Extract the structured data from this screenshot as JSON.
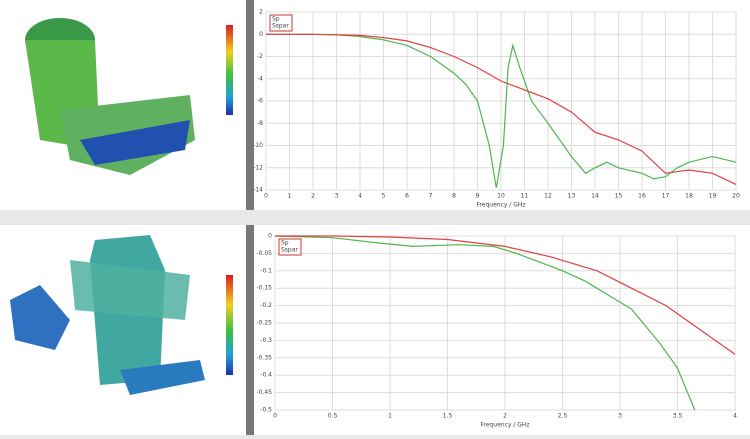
{
  "chart_data": [
    {
      "type": "line",
      "xlabel": "Frequency / GHz",
      "xlim": [
        0,
        20
      ],
      "xticks": [
        0,
        1,
        2,
        3,
        4,
        5,
        6,
        7,
        8,
        9,
        10,
        11,
        12,
        13,
        14,
        15,
        16,
        17,
        18,
        19,
        20
      ],
      "ylim": [
        -14,
        2
      ],
      "yticks": [
        2,
        0,
        -2,
        -4,
        -6,
        -8,
        -10,
        -12,
        -14
      ],
      "grid": true,
      "series": [
        {
          "name": "Sp",
          "color": "#4cb84c",
          "x": [
            0,
            2,
            3,
            4,
            5,
            6,
            7,
            8,
            8.5,
            9,
            9.5,
            9.8,
            10.1,
            10.3,
            10.5,
            10.8,
            11.3,
            12,
            13,
            13.6,
            14,
            14.5,
            15,
            16,
            16.5,
            17,
            17.5,
            18,
            19,
            20
          ],
          "values": [
            0,
            0,
            -0.05,
            -0.2,
            -0.5,
            -1,
            -2,
            -3.5,
            -4.5,
            -6,
            -10,
            -13.8,
            -10,
            -3,
            -1,
            -3,
            -6,
            -8,
            -11,
            -12.5,
            -12,
            -11.5,
            -12,
            -12.5,
            -13,
            -12.8,
            -12,
            -11.5,
            -11,
            -11.5
          ]
        },
        {
          "name": "Sspar",
          "color": "#e04040",
          "x": [
            0,
            2,
            4,
            5,
            6,
            7,
            8,
            9,
            10,
            11,
            12,
            13,
            14,
            15,
            16,
            17,
            18,
            19,
            20
          ],
          "values": [
            0,
            0,
            -0.1,
            -0.3,
            -0.6,
            -1.2,
            -2.0,
            -3.0,
            -4.2,
            -5.0,
            -5.8,
            -7.0,
            -8.8,
            -9.5,
            -10.5,
            -12.5,
            -12.2,
            -12.5,
            -13.5
          ]
        }
      ]
    },
    {
      "type": "line",
      "xlabel": "Frequency / GHz",
      "xlim": [
        0,
        4
      ],
      "xticks": [
        0,
        0.5,
        1,
        1.5,
        2,
        2.5,
        3,
        3.5,
        4
      ],
      "ylim": [
        -0.5,
        0
      ],
      "yticks": [
        0,
        -0.05,
        -0.1,
        -0.15,
        -0.2,
        -0.25,
        -0.3,
        -0.35,
        -0.4,
        -0.45,
        -0.5
      ],
      "grid": true,
      "series": [
        {
          "name": "Sp",
          "color": "#4cb84c",
          "x": [
            0,
            0.5,
            0.9,
            1.2,
            1.6,
            1.9,
            2.1,
            2.3,
            2.5,
            2.7,
            2.9,
            3.1,
            3.2,
            3.35,
            3.5,
            3.65
          ],
          "values": [
            0,
            -0.005,
            -0.02,
            -0.03,
            -0.025,
            -0.03,
            -0.05,
            -0.075,
            -0.1,
            -0.13,
            -0.17,
            -0.21,
            -0.25,
            -0.31,
            -0.38,
            -0.5
          ]
        },
        {
          "name": "Sspar",
          "color": "#e04040",
          "x": [
            0,
            0.5,
            1,
            1.5,
            2,
            2.4,
            2.8,
            3.1,
            3.4,
            3.7,
            4
          ],
          "values": [
            0,
            0,
            -0.003,
            -0.01,
            -0.03,
            -0.06,
            -0.1,
            -0.15,
            -0.2,
            -0.27,
            -0.34
          ]
        }
      ]
    }
  ]
}
